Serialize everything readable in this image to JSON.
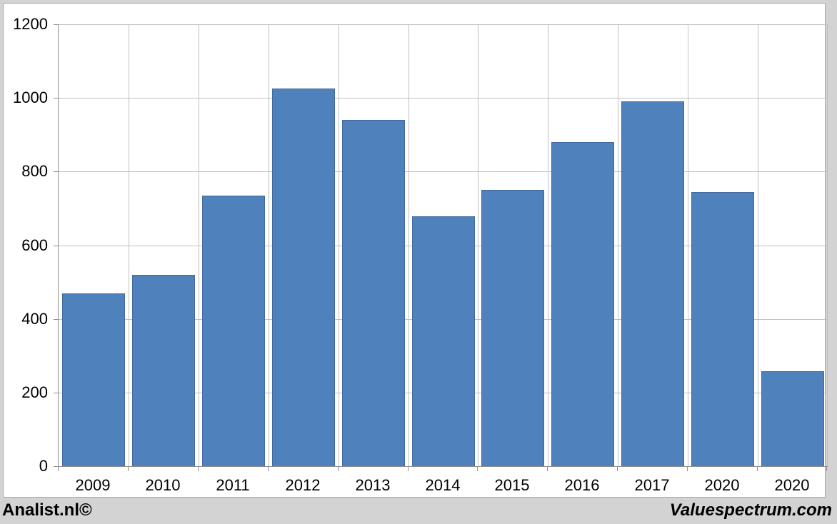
{
  "chart_data": {
    "type": "bar",
    "categories": [
      "2009",
      "2010",
      "2011",
      "2012",
      "2013",
      "2014",
      "2015",
      "2016",
      "2017",
      "2020",
      "2020"
    ],
    "values": [
      470,
      520,
      735,
      1025,
      940,
      678,
      750,
      880,
      990,
      745,
      257
    ],
    "title": "",
    "xlabel": "",
    "ylabel": "",
    "ylim": [
      0,
      1200
    ],
    "yticks": [
      0,
      200,
      400,
      600,
      800,
      1000,
      1200
    ],
    "grid": true,
    "legend": "none"
  },
  "footer": {
    "left": "Analist.nl©",
    "right": "Valuespectrum.com"
  },
  "colors": {
    "bar_fill": "#4f81bd",
    "bar_border": "#41699c",
    "gridline": "#c0c0c0",
    "axis": "#8e8e8e",
    "frame_bg": "#d3d3d3",
    "panel_border": "#a6a6a6",
    "text": "#000000"
  }
}
